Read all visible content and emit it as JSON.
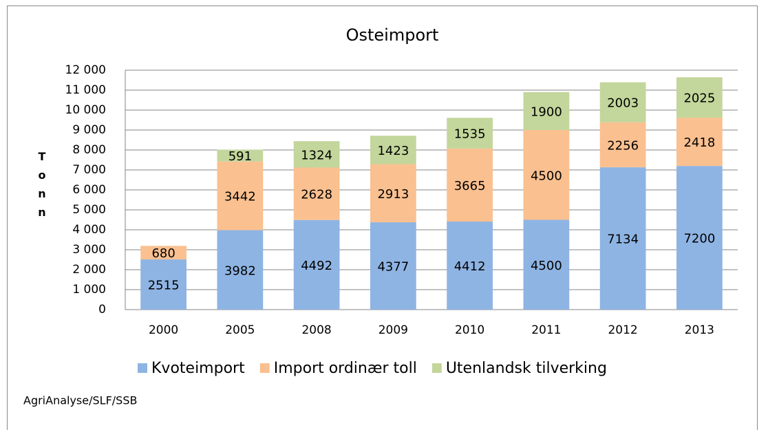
{
  "chart_data": {
    "type": "stacked_bar",
    "title": "Osteimport",
    "y_label": "Tonn",
    "source": "AgriAnalyse/SLF/SSB",
    "categories": [
      "2000",
      "2005",
      "2008",
      "2009",
      "2010",
      "2011",
      "2012",
      "2013"
    ],
    "series": [
      {
        "name": "Kvoteimport",
        "color": "#8eb4e3",
        "values": [
          2515,
          3982,
          4492,
          4377,
          4412,
          4500,
          7134,
          7200
        ]
      },
      {
        "name": "Import ordinær toll",
        "color": "#fac090",
        "values": [
          680,
          3442,
          2628,
          2913,
          3665,
          4500,
          2256,
          2418
        ]
      },
      {
        "name": "Utenlandsk tilverking",
        "color": "#c3d69b",
        "values": [
          null,
          591,
          1324,
          1423,
          1535,
          1900,
          2003,
          2025
        ]
      }
    ],
    "ylim": [
      0,
      12000
    ],
    "yticks": [
      0,
      {
        "value": 1000,
        "label": "1 000"
      },
      {
        "value": 2000,
        "label": "2 000"
      },
      {
        "value": 3000,
        "label": "3 000"
      },
      {
        "value": 4000,
        "label": "4 000"
      },
      {
        "value": 5000,
        "label": "5 000"
      },
      {
        "value": 6000,
        "label": "6 000"
      },
      {
        "value": 7000,
        "label": "7 000"
      },
      {
        "value": 8000,
        "label": "8 000"
      },
      {
        "value": 9000,
        "label": "9 000"
      },
      {
        "value": 10000,
        "label": "10 000"
      },
      {
        "value": 11000,
        "label": "11 000"
      },
      {
        "value": 12000,
        "label": "12 000"
      }
    ],
    "grid": true,
    "legend": "bottom"
  }
}
